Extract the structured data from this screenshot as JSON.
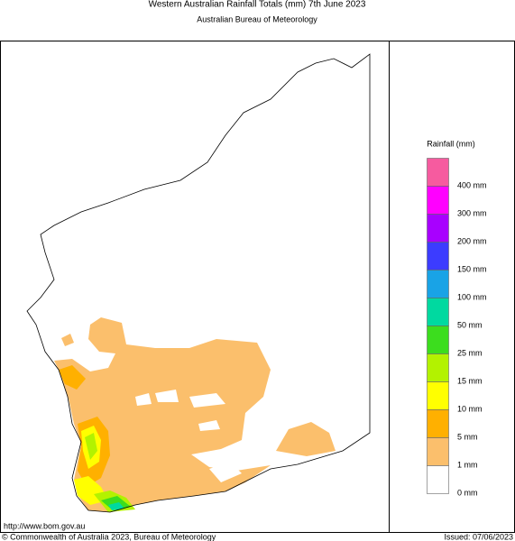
{
  "header": {
    "title": "Western Australian Rainfall Totals (mm) 7th June 2023",
    "subtitle": "Australian Bureau of Meteorology"
  },
  "legend": {
    "title": "Rainfall (mm)",
    "colors": [
      "#f65b9f",
      "#ff00ff",
      "#a800ff",
      "#3c3cff",
      "#19a3e6",
      "#00d9a0",
      "#3cdd1e",
      "#b3f200",
      "#ffff00",
      "#ffb000",
      "#fbbf6c",
      "#ffffff"
    ],
    "labels": [
      "400 mm",
      "300 mm",
      "200 mm",
      "150 mm",
      "100 mm",
      "50 mm",
      "25 mm",
      "15 mm",
      "10 mm",
      "5 mm",
      "1 mm",
      "0 mm"
    ]
  },
  "footer": {
    "url": "http://www.bom.gov.au",
    "copyright": "© Commonwealth of Australia 2023, Bureau of Meteorology",
    "issued": "Issued: 07/06/2023"
  }
}
